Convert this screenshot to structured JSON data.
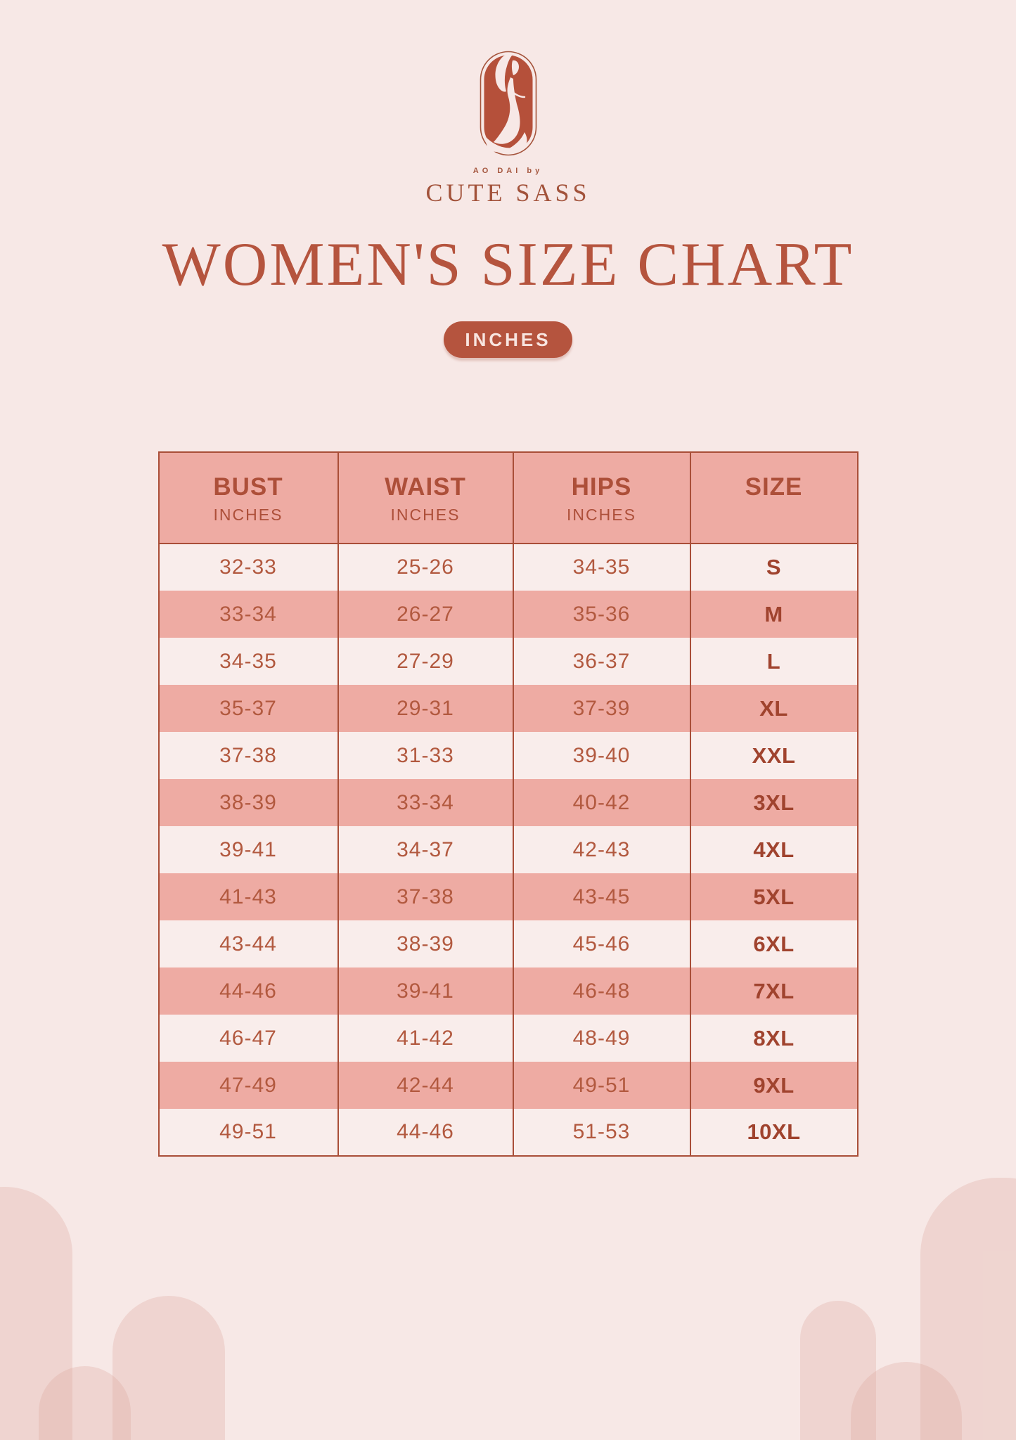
{
  "brand": {
    "tagline": "AO DAI by",
    "name": "CUTE SASS",
    "logo_icon": "woman-in-ao-dai-logo"
  },
  "page": {
    "title": "WOMEN'S SIZE CHART",
    "unit_badge": "INCHES"
  },
  "colors": {
    "background": "#f7e8e6",
    "accent_rust": "#b5543e",
    "table_border": "#a94e38",
    "row_pink": "#eeaba3",
    "row_light": "#f9edeb",
    "arch_decoration": "rgba(220,162,151,0.28)"
  },
  "table": {
    "columns": [
      {
        "label": "BUST",
        "sublabel": "INCHES"
      },
      {
        "label": "WAIST",
        "sublabel": "INCHES"
      },
      {
        "label": "HIPS",
        "sublabel": "INCHES"
      },
      {
        "label": "SIZE",
        "sublabel": ""
      }
    ],
    "rows": [
      {
        "bust": "32-33",
        "waist": "25-26",
        "hips": "34-35",
        "size": "S"
      },
      {
        "bust": "33-34",
        "waist": "26-27",
        "hips": "35-36",
        "size": "M"
      },
      {
        "bust": "34-35",
        "waist": "27-29",
        "hips": "36-37",
        "size": "L"
      },
      {
        "bust": "35-37",
        "waist": "29-31",
        "hips": "37-39",
        "size": "XL"
      },
      {
        "bust": "37-38",
        "waist": "31-33",
        "hips": "39-40",
        "size": "XXL"
      },
      {
        "bust": "38-39",
        "waist": "33-34",
        "hips": "40-42",
        "size": "3XL"
      },
      {
        "bust": "39-41",
        "waist": "34-37",
        "hips": "42-43",
        "size": "4XL"
      },
      {
        "bust": "41-43",
        "waist": "37-38",
        "hips": "43-45",
        "size": "5XL"
      },
      {
        "bust": "43-44",
        "waist": "38-39",
        "hips": "45-46",
        "size": "6XL"
      },
      {
        "bust": "44-46",
        "waist": "39-41",
        "hips": "46-48",
        "size": "7XL"
      },
      {
        "bust": "46-47",
        "waist": "41-42",
        "hips": "48-49",
        "size": "8XL"
      },
      {
        "bust": "47-49",
        "waist": "42-44",
        "hips": "49-51",
        "size": "9XL"
      },
      {
        "bust": "49-51",
        "waist": "44-46",
        "hips": "51-53",
        "size": "10XL"
      }
    ]
  }
}
